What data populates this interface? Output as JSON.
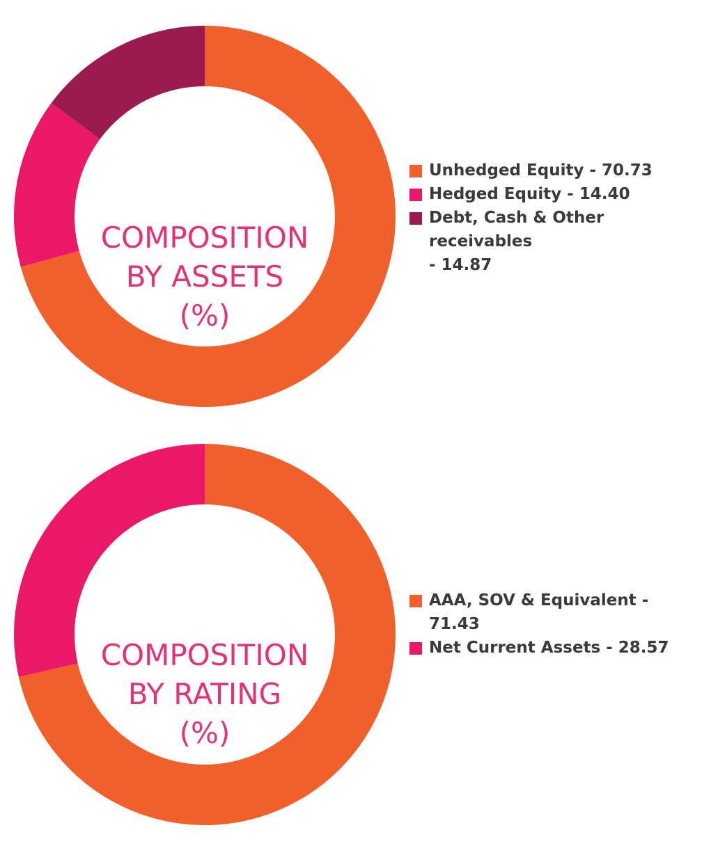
{
  "chart_data": [
    {
      "type": "pie",
      "title": "COMPOSITION BY ASSETS (%)",
      "title_lines": [
        "COMPOSITION",
        "BY ASSETS",
        "(%)"
      ],
      "donut": true,
      "categories": [
        "Unhedged Equity",
        "Hedged Equity",
        "Debt, Cash & Other receivables"
      ],
      "values": [
        70.73,
        14.4,
        14.87
      ],
      "colors": [
        "#f15f2a",
        "#eb1768",
        "#9b1b50"
      ],
      "legend": [
        {
          "lines": [
            "Unhedged Equity - 70.73"
          ]
        },
        {
          "lines": [
            "Hedged Equity - 14.40"
          ]
        },
        {
          "lines": [
            "Debt, Cash & Other receivables",
            "- 14.87"
          ]
        }
      ],
      "legend_position": "right"
    },
    {
      "type": "pie",
      "title": "COMPOSITION BY RATING (%)",
      "title_lines": [
        "COMPOSITION",
        "BY RATING",
        "(%)"
      ],
      "donut": true,
      "categories": [
        "AAA, SOV & Equivalent",
        "Net Current Assets"
      ],
      "values": [
        71.43,
        28.57
      ],
      "colors": [
        "#f15f2a",
        "#eb1768"
      ],
      "legend": [
        {
          "lines": [
            "AAA, SOV & Equivalent -",
            "71.43"
          ]
        },
        {
          "lines": [
            "Net Current Assets - 28.57"
          ]
        }
      ],
      "legend_position": "right"
    }
  ],
  "colors": {
    "title": "#e5317a",
    "legend_text": "#3a3a3c",
    "background": "#ffffff"
  }
}
